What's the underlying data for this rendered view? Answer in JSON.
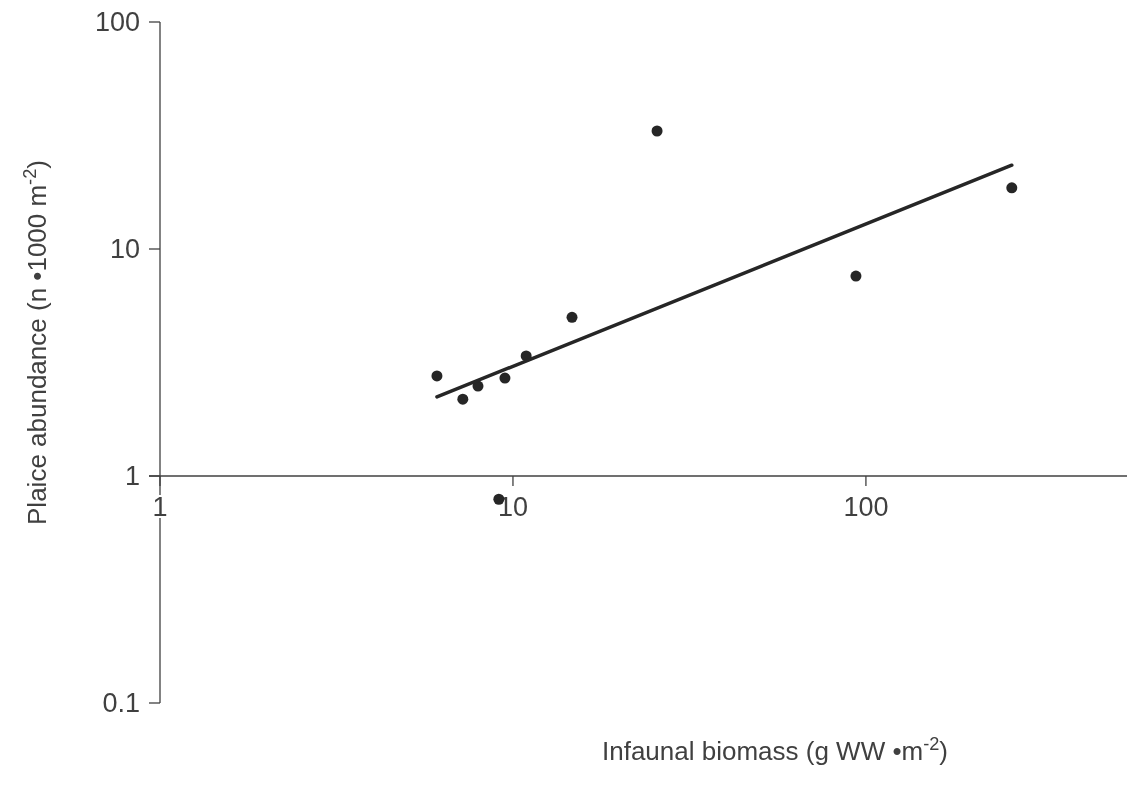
{
  "chart_data": {
    "type": "scatter",
    "xlabel": "Infaunal biomass (g WW •m$^{-2}$)",
    "ylabel": "Plaice abundance (n •1000 m$^{-2}$)",
    "log": "xy",
    "xlim": [
      1,
      560
    ],
    "ylim": [
      0.1,
      100
    ],
    "xticks": [
      1,
      10,
      100
    ],
    "yticks": [
      0.1,
      1,
      10,
      100
    ],
    "series": [
      {
        "marker": "circle",
        "color": "#262626",
        "x": [
          6.09,
          7.21,
          7.96,
          9.49,
          10.9,
          9.12,
          14.7,
          25.6,
          93.7,
          259
        ],
        "values": [
          2.76,
          2.18,
          2.49,
          2.7,
          3.38,
          0.79,
          5.0,
          33.1,
          7.6,
          18.6
        ]
      },
      {
        "type": "line",
        "color": "#262626",
        "line_style": "solid",
        "x": [
          6.09,
          259
        ],
        "values": [
          2.23,
          23.4
        ]
      }
    ]
  }
}
